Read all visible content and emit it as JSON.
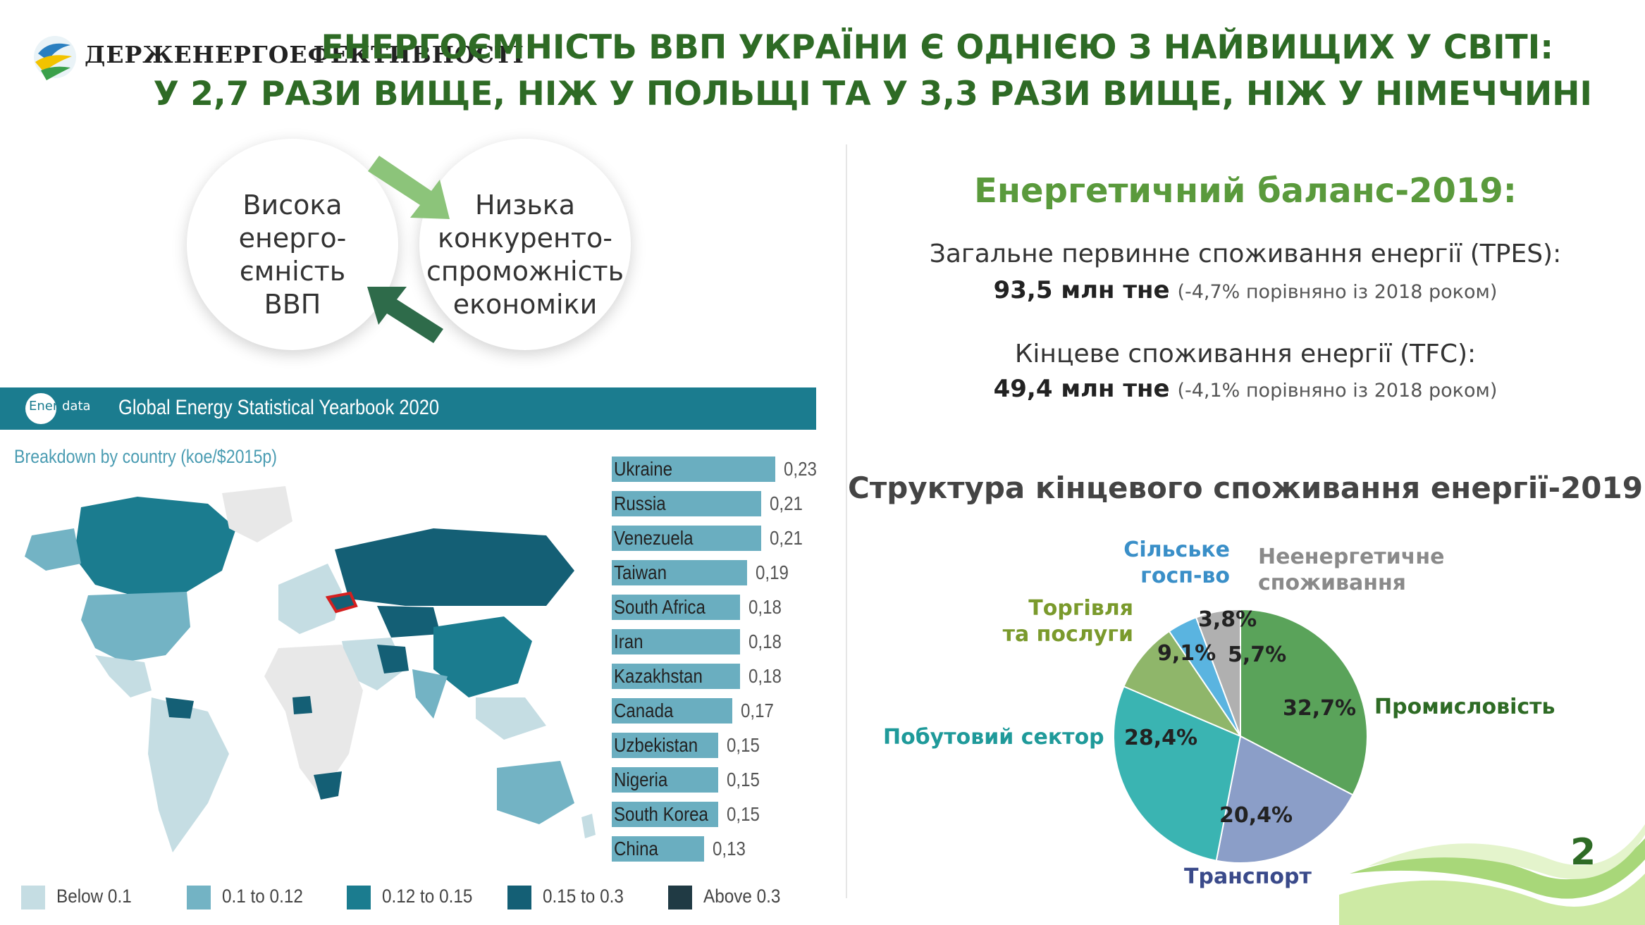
{
  "header": {
    "logo_text": "ДЕРЖЕНЕРГОЕФЕКТИВНОСТІ",
    "title_line1": "ЕНЕРГОЄМНІСТЬ ВВП УКРАЇНИ Є ОДНІЄЮ З НАЙВИЩИХ У СВІТІ:",
    "title_line2": "У 2,7 РАЗИ ВИЩЕ, НІЖ У ПОЛЬЩІ ТА У 3,3 РАЗИ ВИЩЕ, НІЖ У НІМЕЧЧИНІ"
  },
  "cycle": {
    "left_lines": [
      "Висока",
      "енерго-",
      "ємність",
      "ВВП"
    ],
    "right_lines": [
      "Низька",
      "конкуренто-",
      "спроможність",
      "економіки"
    ]
  },
  "enerdata": {
    "logo_part1": "Ener",
    "logo_part2": "data",
    "title": "Global Energy Statistical Yearbook 2020",
    "subtitle": "Breakdown by country (koe/$2015p)"
  },
  "colors": {
    "below_0_1": "#c5dde3",
    "range_0_1_0_12": "#73b3c4",
    "range_0_12_0_15": "#1b7c8f",
    "range_0_15_0_3": "#145f75",
    "above_0_3": "#203a44",
    "bar": "#6aaec0",
    "pie_industry": "#5aa35a",
    "pie_transport": "#8b9ec8",
    "pie_household": "#3ab4b2",
    "pie_trade": "#8fb66a",
    "pie_agriculture": "#5ab4e0",
    "pie_nonenergy": "#b0b0b0"
  },
  "legend": [
    "Below 0.1",
    "0.1 to 0.12",
    "0.12 to 0.15",
    "0.15 to 0.3",
    "Above 0.3"
  ],
  "balance": {
    "title": "Енергетичний баланс-2019:",
    "tpes_label": "Загальне первинне споживання енергії (TPES):",
    "tpes_value": "93,5 млн тне",
    "tpes_note": "(-4,7% порівняно із 2018 роком)",
    "tfc_label": "Кінцеве споживання енергії (TFC):",
    "tfc_value": "49,4 млн тне",
    "tfc_note": "(-4,1% порівняно із 2018 роком)"
  },
  "structure_title": "Структура кінцевого споживання енергії-2019",
  "page_number": "2",
  "chart_data": [
    {
      "type": "bar",
      "title": "",
      "categories": [
        "Ukraine",
        "Russia",
        "Venezuela",
        "Taiwan",
        "South Africa",
        "Iran",
        "Kazakhstan",
        "Canada",
        "Uzbekistan",
        "Nigeria",
        "South Korea",
        "China"
      ],
      "values": [
        0.23,
        0.21,
        0.21,
        0.19,
        0.18,
        0.18,
        0.18,
        0.17,
        0.15,
        0.15,
        0.15,
        0.13
      ],
      "value_labels": [
        "0,23",
        "0,21",
        "0,21",
        "0,19",
        "0,18",
        "0,18",
        "0,18",
        "0,17",
        "0,15",
        "0,15",
        "0,15",
        "0,13"
      ],
      "orientation": "horizontal"
    },
    {
      "type": "pie",
      "title": "Структура кінцевого споживання енергії-2019",
      "categories": [
        "Промисловість",
        "Транспорт",
        "Побутовий сектор",
        "Торгівля та послуги",
        "Сільське госп-во",
        "Неенергетичне споживання"
      ],
      "values": [
        32.7,
        20.4,
        28.4,
        9.1,
        3.8,
        5.7
      ],
      "value_labels": [
        "32,7%",
        "20,4%",
        "28,4%",
        "9,1%",
        "3,8%",
        "5,7%"
      ]
    }
  ]
}
